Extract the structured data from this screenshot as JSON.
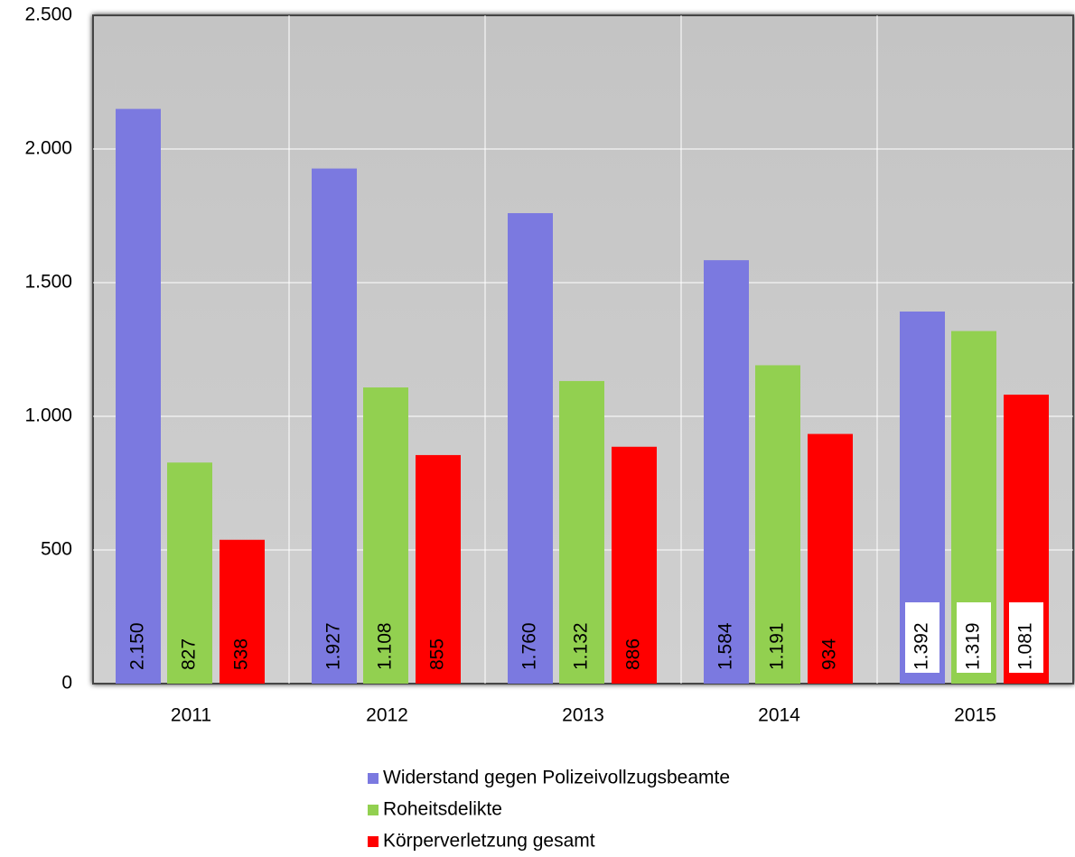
{
  "chart_data": {
    "type": "bar",
    "categories": [
      "2011",
      "2012",
      "2013",
      "2014",
      "2015"
    ],
    "series": [
      {
        "name": "Widerstand gegen Polizeivollzugsbeamte",
        "color": "#7b79e0",
        "values": [
          2150,
          1927,
          1760,
          1584,
          1392
        ],
        "value_labels": [
          "2.150",
          "1.927",
          "1.760",
          "1.584",
          "1.392"
        ]
      },
      {
        "name": "Roheitsdelikte",
        "color": "#92d050",
        "values": [
          827,
          1108,
          1132,
          1191,
          1319
        ],
        "value_labels": [
          "827",
          "1.108",
          "1.132",
          "1.191",
          "1.319"
        ]
      },
      {
        "name": "Körperverletzung gesamt",
        "color": "#ff0000",
        "values": [
          538,
          855,
          886,
          934,
          1081
        ],
        "value_labels": [
          "538",
          "855",
          "886",
          "934",
          "1.081"
        ]
      }
    ],
    "ylim": [
      0,
      2500
    ],
    "yticks": [
      0,
      500,
      {
        "value": 1000,
        "label": "1.000"
      },
      {
        "value": 1500,
        "label": "1.500"
      },
      {
        "value": 2000,
        "label": "2.000"
      },
      {
        "value": 2500,
        "label": "2.500"
      }
    ],
    "grid": true,
    "legend": "bottom"
  }
}
